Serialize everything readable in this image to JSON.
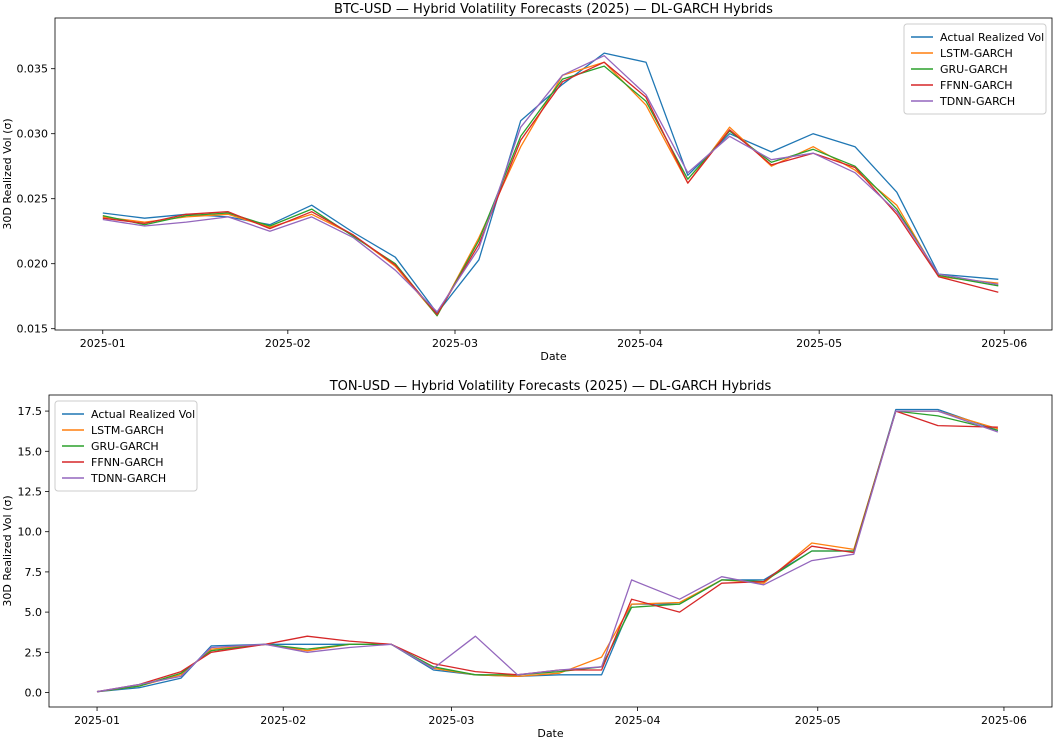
{
  "chart_data": [
    {
      "type": "line",
      "title": "BTC-USD — Hybrid Volatility Forecasts (2025) — DL-GARCH Hybrids",
      "xlabel": "Date",
      "ylabel": "30D Realized Vol (σ)",
      "xlim": [
        "2024-12-24",
        "2025-06-09"
      ],
      "ylim": [
        0.0149,
        0.0389
      ],
      "x_ticks": [
        "2025-01-01",
        "2025-02-01",
        "2025-03-01",
        "2025-04-01",
        "2025-05-01",
        "2025-06-01"
      ],
      "x_tick_labels": [
        "2025-01",
        "2025-02",
        "2025-03",
        "2025-04",
        "2025-05",
        "2025-06"
      ],
      "y_ticks": [
        0.015,
        0.02,
        0.025,
        0.03,
        0.035
      ],
      "y_tick_labels": [
        "0.015",
        "0.020",
        "0.025",
        "0.030",
        "0.035"
      ],
      "legend_position": "top-right",
      "grid": false,
      "x_dates": [
        "2025-01-01",
        "2025-01-08",
        "2025-01-15",
        "2025-01-22",
        "2025-01-29",
        "2025-02-05",
        "2025-02-12",
        "2025-02-19",
        "2025-02-26",
        "2025-03-05",
        "2025-03-12",
        "2025-03-19",
        "2025-03-26",
        "2025-04-02",
        "2025-04-09",
        "2025-04-16",
        "2025-04-23",
        "2025-04-30",
        "2025-05-07",
        "2025-05-14",
        "2025-05-21",
        "2025-05-31"
      ],
      "series": [
        {
          "name": "Actual Realized Vol",
          "color": "#1f77b4",
          "values": [
            0.0239,
            0.0235,
            0.0238,
            0.0236,
            0.023,
            0.0245,
            0.0224,
            0.0205,
            0.0162,
            0.0203,
            0.031,
            0.0338,
            0.0362,
            0.0355,
            0.0268,
            0.03,
            0.0286,
            0.03,
            0.029,
            0.0255,
            0.0192,
            0.0188
          ]
        },
        {
          "name": "LSTM-GARCH",
          "color": "#ff7f0e",
          "values": [
            0.0236,
            0.0232,
            0.0236,
            0.0238,
            0.0228,
            0.0238,
            0.0222,
            0.0198,
            0.016,
            0.022,
            0.029,
            0.0345,
            0.0355,
            0.0322,
            0.0262,
            0.0305,
            0.0275,
            0.029,
            0.0272,
            0.0245,
            0.019,
            0.0185
          ]
        },
        {
          "name": "GRU-GARCH",
          "color": "#2ca02c",
          "values": [
            0.0237,
            0.023,
            0.0237,
            0.0239,
            0.0229,
            0.0242,
            0.0221,
            0.02,
            0.016,
            0.0218,
            0.0298,
            0.0342,
            0.0352,
            0.0325,
            0.0265,
            0.0302,
            0.0278,
            0.0288,
            0.0275,
            0.0242,
            0.0191,
            0.0183
          ]
        },
        {
          "name": "FFNN-GARCH",
          "color": "#d62728",
          "values": [
            0.0235,
            0.0231,
            0.0238,
            0.024,
            0.0227,
            0.024,
            0.0222,
            0.0199,
            0.0161,
            0.0215,
            0.0295,
            0.034,
            0.0355,
            0.0328,
            0.0262,
            0.0303,
            0.0276,
            0.0285,
            0.0274,
            0.0238,
            0.019,
            0.0178
          ]
        },
        {
          "name": "TDNN-GARCH",
          "color": "#9467bd",
          "values": [
            0.0234,
            0.0229,
            0.0232,
            0.0236,
            0.0225,
            0.0236,
            0.022,
            0.0195,
            0.0163,
            0.0212,
            0.0305,
            0.0345,
            0.036,
            0.033,
            0.027,
            0.0298,
            0.028,
            0.0285,
            0.027,
            0.024,
            0.0192,
            0.0184
          ]
        }
      ]
    },
    {
      "type": "line",
      "title": "TON-USD — Hybrid Volatility Forecasts (2025) — DL-GARCH Hybrids",
      "xlabel": "Date",
      "ylabel": "30D Realized Vol (σ)",
      "xlim": [
        "2024-12-24",
        "2025-06-09"
      ],
      "ylim": [
        -0.9,
        18.5
      ],
      "x_ticks": [
        "2025-01-01",
        "2025-02-01",
        "2025-03-01",
        "2025-04-01",
        "2025-05-01",
        "2025-06-01"
      ],
      "x_tick_labels": [
        "2025-01",
        "2025-02",
        "2025-03",
        "2025-04",
        "2025-05",
        "2025-06"
      ],
      "y_ticks": [
        0.0,
        2.5,
        5.0,
        7.5,
        10.0,
        12.5,
        15.0,
        17.5
      ],
      "y_tick_labels": [
        "0.0",
        "2.5",
        "5.0",
        "7.5",
        "10.0",
        "12.5",
        "15.0",
        "17.5"
      ],
      "legend_position": "top-left",
      "grid": false,
      "x_dates": [
        "2025-01-01",
        "2025-01-08",
        "2025-01-15",
        "2025-01-20",
        "2025-01-29",
        "2025-02-05",
        "2025-02-12",
        "2025-02-19",
        "2025-02-26",
        "2025-03-05",
        "2025-03-12",
        "2025-03-19",
        "2025-03-26",
        "2025-03-31",
        "2025-04-08",
        "2025-04-15",
        "2025-04-22",
        "2025-04-30",
        "2025-05-07",
        "2025-05-14",
        "2025-05-21",
        "2025-05-31"
      ],
      "series": [
        {
          "name": "Actual Realized Vol",
          "color": "#1f77b4",
          "values": [
            0.05,
            0.3,
            0.9,
            2.9,
            3.0,
            3.0,
            3.0,
            3.0,
            1.4,
            1.1,
            1.0,
            1.1,
            1.1,
            5.5,
            5.5,
            7.0,
            7.0,
            8.8,
            8.8,
            17.6,
            17.6,
            16.3
          ]
        },
        {
          "name": "LSTM-GARCH",
          "color": "#ff7f0e",
          "values": [
            0.05,
            0.4,
            1.1,
            2.7,
            3.0,
            2.6,
            3.0,
            3.0,
            1.5,
            1.1,
            1.0,
            1.2,
            2.2,
            5.5,
            5.6,
            7.0,
            6.8,
            9.3,
            8.9,
            17.5,
            17.5,
            16.4
          ]
        },
        {
          "name": "GRU-GARCH",
          "color": "#2ca02c",
          "values": [
            0.05,
            0.4,
            1.2,
            2.6,
            3.0,
            2.7,
            3.0,
            3.0,
            1.6,
            1.1,
            1.1,
            1.3,
            1.6,
            5.3,
            5.5,
            7.0,
            6.9,
            8.8,
            8.8,
            17.5,
            17.2,
            16.3
          ]
        },
        {
          "name": "FFNN-GARCH",
          "color": "#d62728",
          "values": [
            0.05,
            0.5,
            1.3,
            2.5,
            3.0,
            3.5,
            3.2,
            3.0,
            1.8,
            1.3,
            1.1,
            1.4,
            1.4,
            5.8,
            5.0,
            6.8,
            6.9,
            9.1,
            8.7,
            17.5,
            16.6,
            16.5
          ]
        },
        {
          "name": "TDNN-GARCH",
          "color": "#9467bd",
          "values": [
            0.05,
            0.5,
            1.0,
            2.8,
            3.0,
            2.5,
            2.8,
            3.0,
            1.5,
            3.5,
            1.1,
            1.4,
            1.6,
            7.0,
            5.8,
            7.2,
            6.7,
            8.2,
            8.6,
            17.5,
            17.5,
            16.2
          ]
        }
      ]
    }
  ]
}
